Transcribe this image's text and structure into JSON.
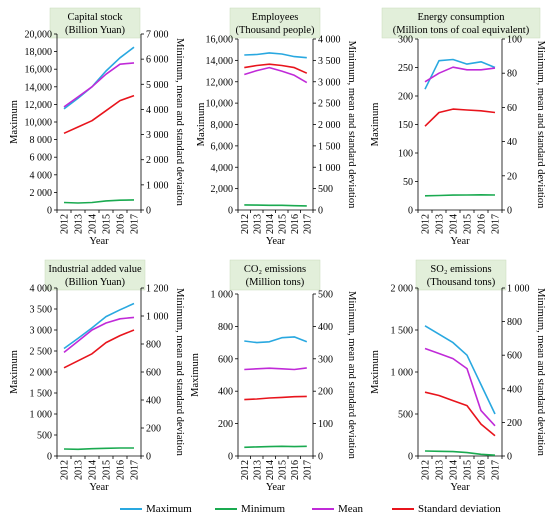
{
  "legend": [
    {
      "name": "Maximum",
      "color": "#29a8e0"
    },
    {
      "name": "Minimum",
      "color": "#1aaa50"
    },
    {
      "name": "Mean",
      "color": "#c02ad8"
    },
    {
      "name": "Standard deviation",
      "color": "#e8141c"
    }
  ],
  "chart_data": [
    {
      "type": "line",
      "title": [
        "Capital stock",
        "(Billion Yuan)"
      ],
      "xlabel": "Year",
      "ylabel": "Maximum",
      "y2label": "Minimum, mean and standard deviation",
      "categories": [
        "2012",
        "2013",
        "2014",
        "2015",
        "2016",
        "2017"
      ],
      "ylim": [
        0,
        20000
      ],
      "yticks": [
        0,
        2000,
        4000,
        6000,
        8000,
        10000,
        12000,
        14000,
        16000,
        18000,
        20000
      ],
      "ytick_labels": [
        "0",
        "2 000",
        "4 000",
        "6 000",
        "8 000",
        "10,000",
        "12,000",
        "14,000",
        "16,000",
        "18,000",
        "20,000"
      ],
      "y2lim": [
        0,
        7000
      ],
      "y2ticks": [
        0,
        1000,
        2000,
        3000,
        4000,
        5000,
        6000,
        7000
      ],
      "y2tick_labels": [
        "0",
        "1 000",
        "2 000",
        "3 000",
        "4 000",
        "5 000",
        "6 000",
        "7 000"
      ],
      "series": [
        {
          "name": "Maximum",
          "axis": "left",
          "values": [
            11500,
            12700,
            14000,
            15800,
            17300,
            18500
          ]
        },
        {
          "name": "Minimum",
          "axis": "right",
          "values": [
            300,
            280,
            300,
            360,
            390,
            400
          ]
        },
        {
          "name": "Mean",
          "axis": "right",
          "values": [
            4100,
            4500,
            4900,
            5400,
            5800,
            5850
          ]
        },
        {
          "name": "Standard deviation",
          "axis": "right",
          "values": [
            3050,
            3300,
            3550,
            3950,
            4350,
            4550
          ]
        }
      ]
    },
    {
      "type": "line",
      "title": [
        "Employees",
        "(Thousand people)"
      ],
      "xlabel": "Year",
      "ylabel": "Maximum",
      "y2label": "Minimum, mean and standard deviation",
      "categories": [
        "2012",
        "2013",
        "2014",
        "2015",
        "2016",
        "2017"
      ],
      "ylim": [
        0,
        16000
      ],
      "yticks": [
        0,
        2000,
        4000,
        6000,
        8000,
        10000,
        12000,
        14000,
        16000
      ],
      "ytick_labels": [
        "0",
        "2,000",
        "4,000",
        "6,000",
        "8,000",
        "10,000",
        "12,000",
        "14,000",
        "16,000"
      ],
      "y2lim": [
        0,
        4000
      ],
      "y2ticks": [
        0,
        500,
        1000,
        1500,
        2000,
        2500,
        3000,
        3500,
        4000
      ],
      "y2tick_labels": [
        "0",
        "500",
        "1 000",
        "1 500",
        "2 000",
        "2 500",
        "3 000",
        "3 500",
        "4 000"
      ],
      "series": [
        {
          "name": "Maximum",
          "axis": "left",
          "values": [
            14500,
            14550,
            14700,
            14600,
            14350,
            14250
          ]
        },
        {
          "name": "Minimum",
          "axis": "right",
          "values": [
            120,
            115,
            110,
            110,
            100,
            95
          ]
        },
        {
          "name": "Mean",
          "axis": "right",
          "values": [
            3170,
            3260,
            3330,
            3250,
            3150,
            2980
          ]
        },
        {
          "name": "Standard deviation",
          "axis": "right",
          "values": [
            3330,
            3380,
            3410,
            3380,
            3330,
            3200
          ]
        }
      ]
    },
    {
      "type": "line",
      "title": [
        "Energy consumption",
        "(Million tons of coal equivalent)"
      ],
      "xlabel": "Year",
      "ylabel": "Maximum",
      "y2label": "Minimum, mean and standard deviation",
      "categories": [
        "2012",
        "2013",
        "2014",
        "2015",
        "2016",
        "2017"
      ],
      "ylim": [
        0,
        300
      ],
      "yticks": [
        0,
        50,
        100,
        150,
        200,
        250,
        300
      ],
      "ytick_labels": [
        "0",
        "50",
        "100",
        "150",
        "200",
        "250",
        "300"
      ],
      "y2lim": [
        0,
        100
      ],
      "y2ticks": [
        0,
        20,
        40,
        60,
        80,
        100
      ],
      "y2tick_labels": [
        "0",
        "20",
        "40",
        "60",
        "80",
        "100"
      ],
      "series": [
        {
          "name": "Maximum",
          "axis": "left",
          "values": [
            212,
            262,
            264,
            256,
            260,
            250
          ]
        },
        {
          "name": "Minimum",
          "axis": "right",
          "values": [
            8.3,
            8.5,
            8.7,
            8.8,
            8.9,
            8.8
          ]
        },
        {
          "name": "Mean",
          "axis": "right",
          "values": [
            75,
            80,
            83.5,
            82,
            82,
            83
          ]
        },
        {
          "name": "Standard deviation",
          "axis": "right",
          "values": [
            49,
            57,
            59,
            58.5,
            58,
            57
          ]
        }
      ]
    },
    {
      "type": "line",
      "title": [
        "Industrial added value",
        "(Billion Yuan)"
      ],
      "xlabel": "Year",
      "ylabel": "Maximum",
      "y2label": "Minimum, mean and standard deviation",
      "categories": [
        "2012",
        "2013",
        "2014",
        "2015",
        "2016",
        "2017"
      ],
      "ylim": [
        0,
        4000
      ],
      "yticks": [
        0,
        500,
        1000,
        1500,
        2000,
        2500,
        3000,
        3500,
        4000
      ],
      "ytick_labels": [
        "0",
        "500",
        "1 000",
        "1 500",
        "2 000",
        "2 500",
        "3 000",
        "3 500",
        "4 000"
      ],
      "y2lim": [
        0,
        1200
      ],
      "y2ticks": [
        0,
        200,
        400,
        600,
        800,
        1000,
        1200
      ],
      "y2tick_labels": [
        "0",
        "200",
        "400",
        "600",
        "800",
        "1 000",
        "1 200"
      ],
      "series": [
        {
          "name": "Maximum",
          "axis": "left",
          "values": [
            2560,
            2800,
            3050,
            3320,
            3480,
            3630
          ]
        },
        {
          "name": "Minimum",
          "axis": "right",
          "values": [
            50,
            48,
            52,
            55,
            57,
            57
          ]
        },
        {
          "name": "Mean",
          "axis": "right",
          "values": [
            740,
            820,
            900,
            950,
            980,
            990
          ]
        },
        {
          "name": "Standard deviation",
          "axis": "right",
          "values": [
            630,
            680,
            730,
            810,
            860,
            900
          ]
        }
      ]
    },
    {
      "type": "line",
      "title": [
        "CO₂ emissions",
        "(Million tons)"
      ],
      "xlabel": "Year",
      "ylabel": "Maximum",
      "y2label": "Minimum, mean and standard deviation",
      "categories": [
        "2012",
        "2013",
        "2014",
        "2015",
        "2016",
        "2017"
      ],
      "ylim": [
        0,
        1000
      ],
      "yticks": [
        0,
        200,
        400,
        600,
        800,
        1000
      ],
      "ytick_labels": [
        "0",
        "200",
        "400",
        "600",
        "800",
        "1 000"
      ],
      "y2lim": [
        0,
        500
      ],
      "y2ticks": [
        0,
        100,
        200,
        300,
        400,
        500
      ],
      "y2tick_labels": [
        "0",
        "100",
        "200",
        "300",
        "400",
        "500"
      ],
      "series": [
        {
          "name": "Maximum",
          "axis": "left",
          "values": [
            710,
            700,
            705,
            730,
            735,
            705
          ]
        },
        {
          "name": "Minimum",
          "axis": "right",
          "values": [
            27,
            28,
            29,
            30,
            29,
            30
          ]
        },
        {
          "name": "Mean",
          "axis": "right",
          "values": [
            267,
            269,
            271,
            269,
            267,
            272
          ]
        },
        {
          "name": "Standard deviation",
          "axis": "right",
          "values": [
            174,
            176,
            179,
            181,
            183,
            184
          ]
        }
      ]
    },
    {
      "type": "line",
      "title": [
        "SO₂ emissions",
        "(Thousand tons)"
      ],
      "xlabel": "Year",
      "ylabel": "Maximum",
      "y2label": "Minimum, mean and standard deviation",
      "categories": [
        "2012",
        "2013",
        "2014",
        "2015",
        "2016",
        "2017"
      ],
      "ylim": [
        0,
        2000
      ],
      "yticks": [
        0,
        500,
        1000,
        1500,
        2000
      ],
      "ytick_labels": [
        "0",
        "500",
        "1 000",
        "1 500",
        "2 000"
      ],
      "y2lim": [
        0,
        1000
      ],
      "y2ticks": [
        0,
        200,
        400,
        600,
        800,
        1000
      ],
      "y2tick_labels": [
        "0",
        "200",
        "400",
        "600",
        "800",
        "1 000"
      ],
      "series": [
        {
          "name": "Maximum",
          "axis": "left",
          "values": [
            1550,
            1450,
            1350,
            1200,
            850,
            500
          ]
        },
        {
          "name": "Minimum",
          "axis": "right",
          "values": [
            30,
            28,
            26,
            20,
            10,
            5
          ]
        },
        {
          "name": "Mean",
          "axis": "right",
          "values": [
            640,
            610,
            580,
            520,
            270,
            180
          ]
        },
        {
          "name": "Standard deviation",
          "axis": "right",
          "values": [
            380,
            360,
            330,
            300,
            190,
            120
          ]
        }
      ]
    }
  ]
}
